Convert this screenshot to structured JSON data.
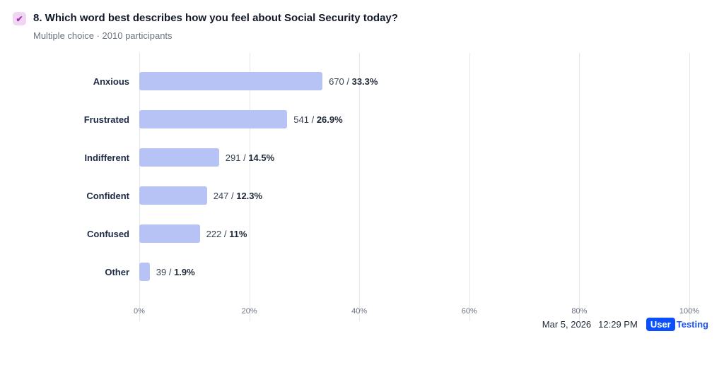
{
  "header": {
    "title": "8. Which word best describes how you feel about Social Security today?",
    "meta": "Multiple choice · 2010 participants",
    "check_icon": "✔"
  },
  "chart_data": {
    "type": "bar",
    "orientation": "horizontal",
    "title": "",
    "xlabel": "",
    "ylabel": "",
    "xlim": [
      0,
      100
    ],
    "grid": "vertical",
    "bar_color": "#b7c3f4",
    "categories": [
      "Anxious",
      "Frustrated",
      "Indifferent",
      "Confident",
      "Confused",
      "Other"
    ],
    "values": [
      670,
      541,
      291,
      247,
      222,
      39
    ],
    "percents": [
      33.3,
      26.9,
      14.5,
      12.3,
      11,
      1.9
    ],
    "x_ticks": [
      "0%",
      "20%",
      "40%",
      "60%",
      "80%",
      "100%"
    ],
    "rows": [
      {
        "label": "Anxious",
        "count_label": "670 / ",
        "pct_label": "33.3%",
        "percent": 33.3
      },
      {
        "label": "Frustrated",
        "count_label": "541 / ",
        "pct_label": "26.9%",
        "percent": 26.9
      },
      {
        "label": "Indifferent",
        "count_label": "291 / ",
        "pct_label": "14.5%",
        "percent": 14.5
      },
      {
        "label": "Confident",
        "count_label": "247 / ",
        "pct_label": "12.3%",
        "percent": 12.3
      },
      {
        "label": "Confused",
        "count_label": "222 / ",
        "pct_label": "11%",
        "percent": 11
      },
      {
        "label": "Other",
        "count_label": "39 / ",
        "pct_label": "1.9%",
        "percent": 1.9
      }
    ]
  },
  "footer": {
    "date": "Mar 5, 2026",
    "time": "12:29 PM",
    "logo_user": "User",
    "logo_testing": "Testing"
  }
}
